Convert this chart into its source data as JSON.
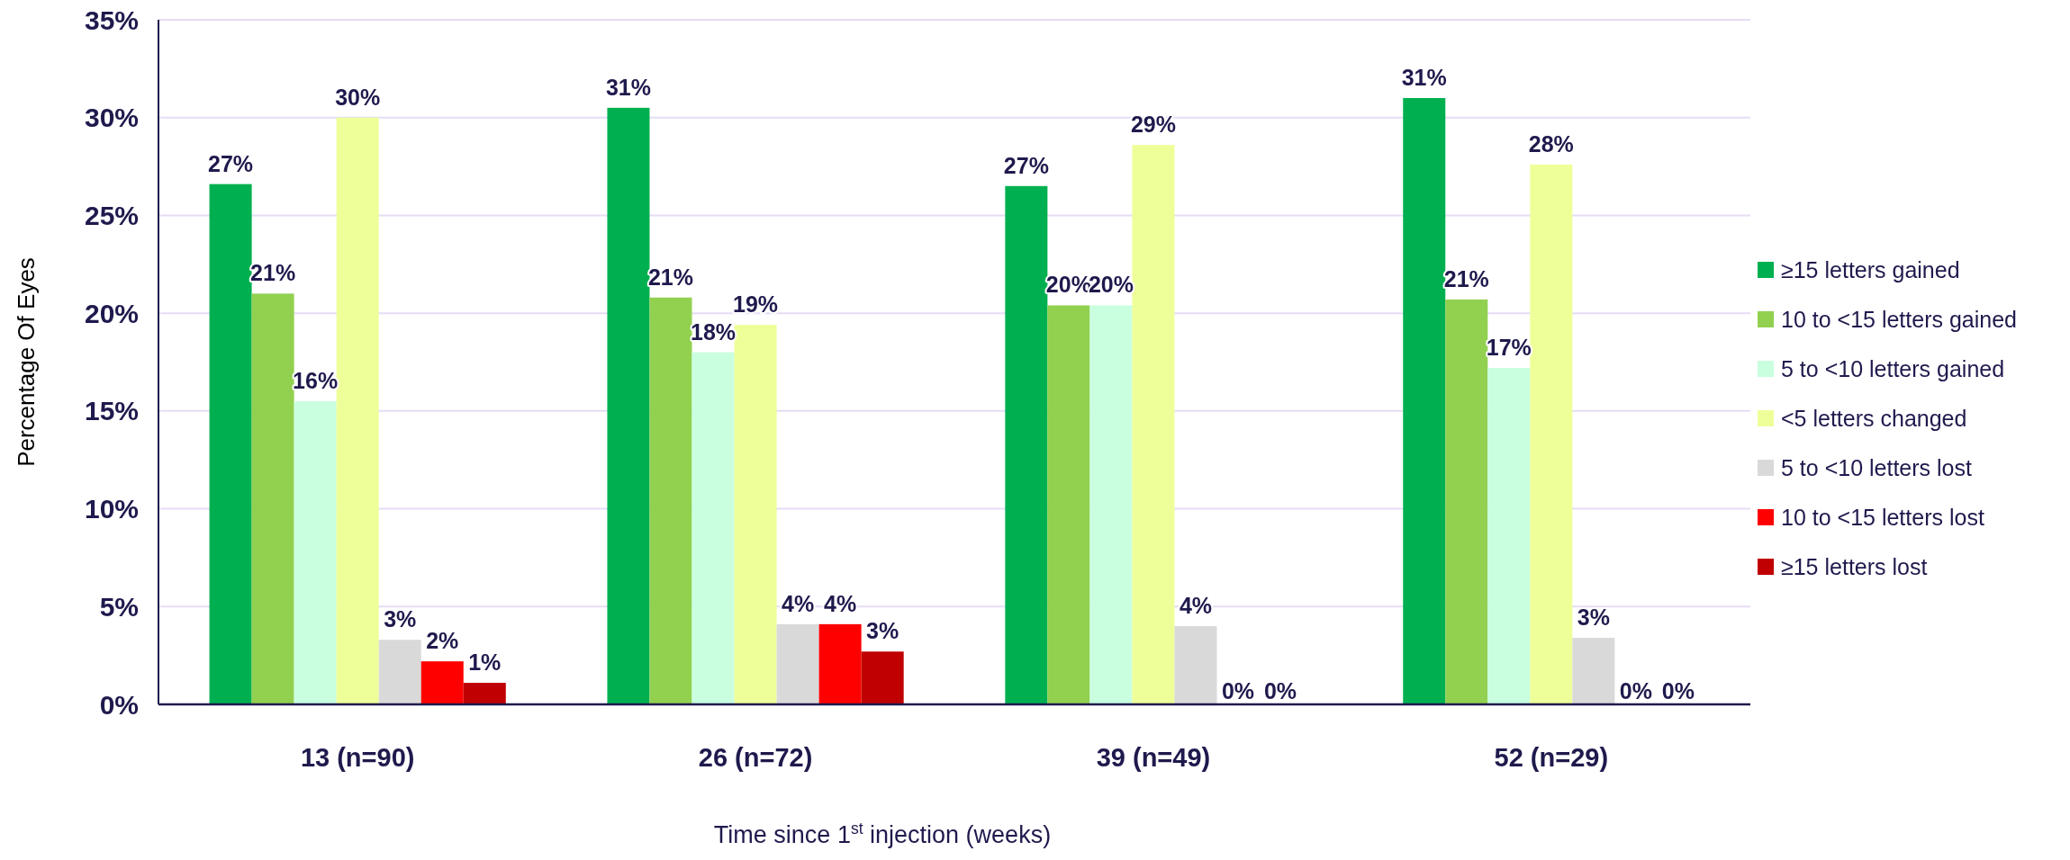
{
  "chart_data": {
    "type": "bar",
    "xlabel": "Time since 1$^{st}$ injection (weeks)",
    "ylabel": "Percentage Of Eyes",
    "categories": [
      "13 (n=90)",
      "26 (n=72)",
      "39 (n=49)",
      "52 (n=29)"
    ],
    "series": [
      {
        "name": "≥15 letters gained",
        "color": "#00b050",
        "values": [
          26.6,
          30.5,
          26.5,
          31.0
        ],
        "value_labels": [
          "27%",
          "31%",
          "27%",
          "31%"
        ]
      },
      {
        "name": "10 to <15 letters gained",
        "color": "#92d050",
        "values": [
          21.0,
          20.8,
          20.4,
          20.7
        ],
        "value_labels": [
          "21%",
          "21%",
          "20%",
          "21%"
        ]
      },
      {
        "name": "5 to <10 letters gained",
        "color": "#c9ffdf",
        "values": [
          15.5,
          18.0,
          20.4,
          17.2
        ],
        "value_labels": [
          "16%",
          "18%",
          "20%",
          "17%"
        ]
      },
      {
        "name": "<5 letters changed",
        "color": "#eeff99",
        "values": [
          30.0,
          19.4,
          28.6,
          27.6
        ],
        "value_labels": [
          "30%",
          "19%",
          "29%",
          "28%"
        ]
      },
      {
        "name": "5 to <10 letters lost",
        "color": "#d9d9d9",
        "values": [
          3.3,
          4.1,
          4.0,
          3.4
        ],
        "value_labels": [
          "3%",
          "4%",
          "4%",
          "3%"
        ]
      },
      {
        "name": "10 to <15 letters lost",
        "color": "#ff0000",
        "values": [
          2.2,
          4.1,
          0,
          0
        ],
        "value_labels": [
          "2%",
          "4%",
          "0%",
          "0%"
        ]
      },
      {
        "name": "≥15 letters lost",
        "color": "#c00000",
        "values": [
          1.1,
          2.7,
          0,
          0
        ],
        "value_labels": [
          "1%",
          "3%",
          "0%",
          "0%"
        ]
      }
    ],
    "ylim": [
      0,
      35
    ],
    "yticks": [
      {
        "value": 0,
        "label": "0%"
      },
      {
        "value": 5,
        "label": "5%"
      },
      {
        "value": 10,
        "label": "10%"
      },
      {
        "value": 15,
        "label": "15%"
      },
      {
        "value": 20,
        "label": "20%"
      },
      {
        "value": 25,
        "label": "25%"
      },
      {
        "value": 30,
        "label": "30%"
      },
      {
        "value": 35,
        "label": "35%"
      }
    ],
    "grid": "y",
    "legend": "right"
  }
}
